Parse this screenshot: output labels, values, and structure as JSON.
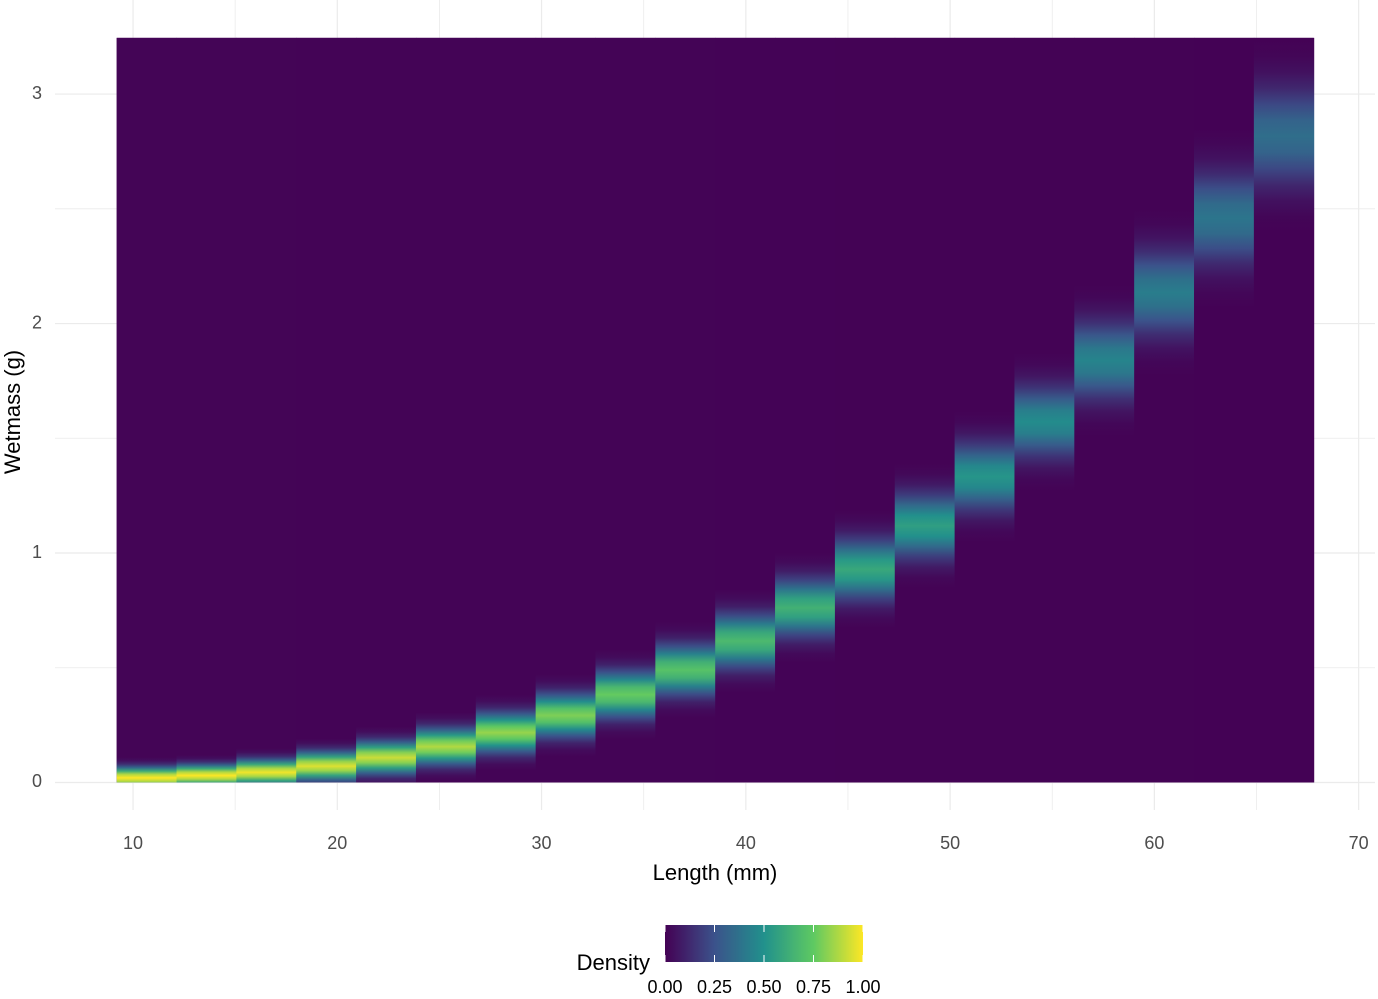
{
  "chart_data": {
    "type": "density_heatmap",
    "x_label": "Length (mm)",
    "y_label": "Wetmass (g)",
    "xlim": [
      6.18,
      70.8
    ],
    "ylim": [
      -0.12,
      3.41
    ],
    "xticks": [
      10,
      20,
      30,
      40,
      50,
      60,
      70
    ],
    "x_minor_ticks": [
      15,
      25,
      35,
      45,
      55,
      65
    ],
    "yticks": [
      0,
      1,
      2,
      3
    ],
    "y_minor_ticks": [
      0.5,
      1.5,
      2.5
    ],
    "grid": true,
    "raster_ylim": [
      0,
      3.245
    ],
    "x_bins": [
      9.2,
      12.13,
      15.06,
      17.99,
      20.92,
      23.85,
      26.78,
      29.71,
      32.64,
      35.57,
      38.5,
      41.43,
      44.36,
      47.29,
      50.22,
      53.15,
      56.08,
      59.01,
      61.94,
      64.87,
      67.8
    ],
    "ridge": [
      0.02,
      0.03,
      0.044,
      0.071,
      0.108,
      0.156,
      0.217,
      0.292,
      0.383,
      0.49,
      0.616,
      0.761,
      0.928,
      1.118,
      1.332,
      1.571,
      1.838,
      2.133,
      2.458,
      2.815
    ],
    "density": [
      1.0,
      1.0,
      0.98,
      0.95,
      0.92,
      0.88,
      0.84,
      0.8,
      0.76,
      0.72,
      0.68,
      0.64,
      0.6,
      0.56,
      0.52,
      0.48,
      0.45,
      0.42,
      0.39,
      0.36
    ],
    "spread": [
      0.03,
      0.03,
      0.035,
      0.04,
      0.045,
      0.05,
      0.055,
      0.06,
      0.065,
      0.07,
      0.075,
      0.08,
      0.085,
      0.09,
      0.095,
      0.1,
      0.11,
      0.12,
      0.13,
      0.14
    ],
    "colors": [
      "#440154",
      "#3b528b",
      "#21918c",
      "#5ec962",
      "#fde725"
    ],
    "legend": {
      "title": "Density",
      "position": "bottom",
      "limits": [
        0,
        1
      ],
      "ticks": [
        {
          "value": 0,
          "label": "0.00"
        },
        {
          "value": 0.25,
          "label": "0.25"
        },
        {
          "value": 0.5,
          "label": "0.50"
        },
        {
          "value": 0.75,
          "label": "0.75"
        },
        {
          "value": 1,
          "label": "1.00"
        }
      ]
    }
  }
}
